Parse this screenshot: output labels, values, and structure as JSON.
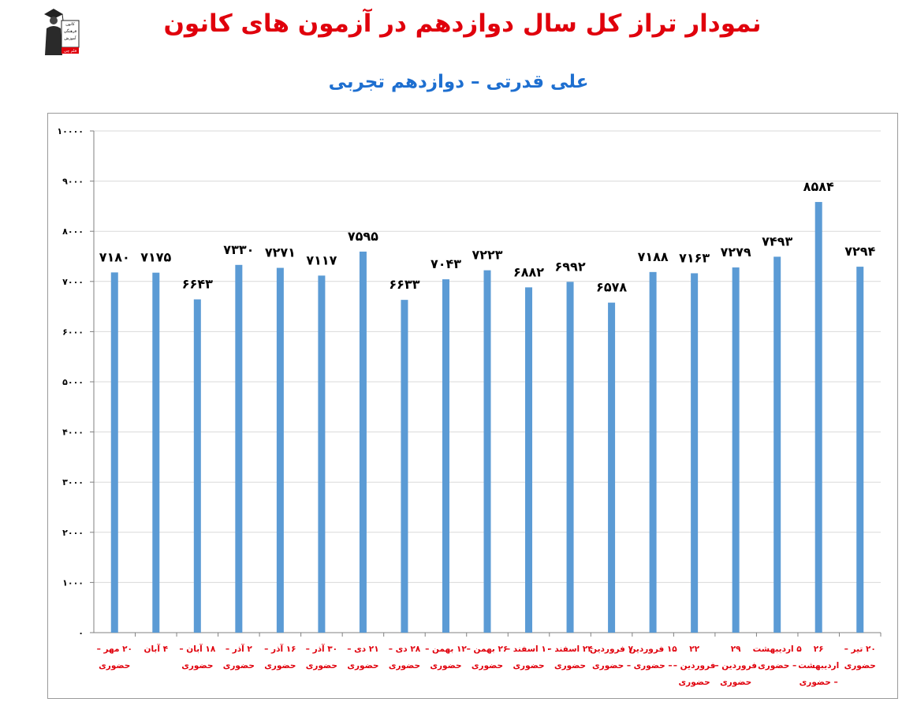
{
  "header": {
    "title": "نمودار تراز کل سال دوازدهم در آزمون های کانون",
    "subtitle": "علی قدرتی – دوازدهم تجربی",
    "logo_text": [
      "کانون",
      "فرهنگی",
      "آموزش",
      "قلم چی"
    ]
  },
  "colors": {
    "title": "#e0000c",
    "subtitle": "#1e6fd0",
    "bar": "#5b9bd5",
    "category_label": "#e0000c",
    "grid": "#d9d9d9"
  },
  "chart_data": {
    "type": "bar",
    "title": "نمودار تراز کل سال دوازدهم در آزمون های کانون",
    "subtitle": "علی قدرتی – دوازدهم تجربی",
    "xlabel": "",
    "ylabel": "",
    "ylim": [
      0,
      10000
    ],
    "yticks": [
      0,
      1000,
      2000,
      3000,
      4000,
      5000,
      6000,
      7000,
      8000,
      9000,
      10000
    ],
    "ytick_labels": [
      "۰",
      "۱۰۰۰",
      "۲۰۰۰",
      "۳۰۰۰",
      "۴۰۰۰",
      "۵۰۰۰",
      "۶۰۰۰",
      "۷۰۰۰",
      "۸۰۰۰",
      "۹۰۰۰",
      "۱۰۰۰۰"
    ],
    "grid": true,
    "legend": "none",
    "categories": [
      [
        "۲۰ مهر –",
        "حضوری"
      ],
      [
        "۴ آبان"
      ],
      [
        "۱۸ آبان –",
        "حضوری"
      ],
      [
        "۲ آذر –",
        "حضوری"
      ],
      [
        "۱۶ آذر –",
        "حضوری"
      ],
      [
        "۳۰ آذر –",
        "حضوری"
      ],
      [
        "۲۱ دی –",
        "حضوری"
      ],
      [
        "۲۸ دی –",
        "حضوری"
      ],
      [
        "۱۲ بهمن –",
        "حضوری"
      ],
      [
        "۲۶ بهمن –",
        "حضوری"
      ],
      [
        "۱۰ اسفند –",
        "حضوری"
      ],
      [
        "۲۴ اسفند –",
        "حضوری"
      ],
      [
        "۷ فروردین",
        "– حضوری"
      ],
      [
        "۱۵ فروردین",
        "– حضوری"
      ],
      [
        "۲۲",
        "فروردین –",
        "حضوری"
      ],
      [
        "۲۹",
        "فروردین –",
        "حضوری"
      ],
      [
        "۵ اردیبهشت",
        "– حضوری"
      ],
      [
        "۲۶",
        "اردیبهشت",
        "– حضوری"
      ],
      [
        "۲۰ تیر –",
        "حضوری"
      ]
    ],
    "values": [
      7180,
      7175,
      6643,
      7330,
      7271,
      7117,
      7595,
      6633,
      7043,
      7223,
      6882,
      6992,
      6578,
      7188,
      7163,
      7279,
      7493,
      8584,
      7294
    ],
    "data_labels": [
      "۷۱۸۰",
      "۷۱۷۵",
      "۶۶۴۳",
      "۷۳۳۰",
      "۷۲۷۱",
      "۷۱۱۷",
      "۷۵۹۵",
      "۶۶۳۳",
      "۷۰۴۳",
      "۷۲۲۳",
      "۶۸۸۲",
      "۶۹۹۲",
      "۶۵۷۸",
      "۷۱۸۸",
      "۷۱۶۳",
      "۷۲۷۹",
      "۷۴۹۳",
      "۸۵۸۴",
      "۷۲۹۴"
    ]
  }
}
